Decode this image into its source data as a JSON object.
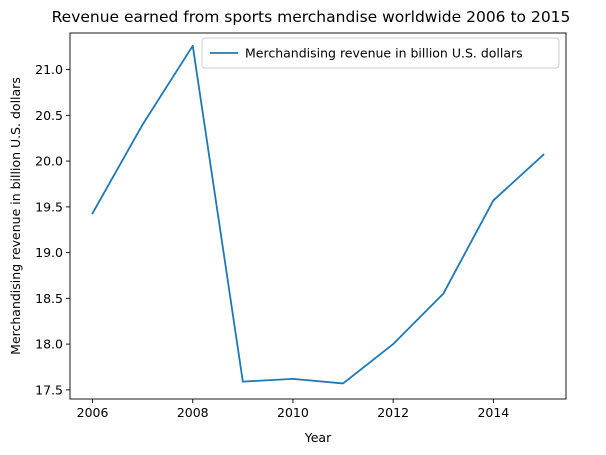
{
  "chart_data": {
    "type": "line",
    "title": "Revenue earned from sports merchandise worldwide 2006 to 2015",
    "xlabel": "Year",
    "ylabel": "Merchandising revenue in billion U.S. dollars",
    "x": [
      2006,
      2007,
      2008,
      2009,
      2010,
      2011,
      2012,
      2013,
      2014,
      2015
    ],
    "series": [
      {
        "name": "Merchandising revenue in billion U.S. dollars",
        "color": "#1f77b4",
        "values": [
          19.43,
          20.4,
          21.26,
          17.59,
          17.62,
          17.57,
          18.0,
          18.55,
          19.57,
          20.07
        ]
      }
    ],
    "xlim": [
      2005.55,
      2015.45
    ],
    "ylim": [
      17.4,
      21.4
    ],
    "x_ticks": [
      2006,
      2008,
      2010,
      2012,
      2014
    ],
    "y_ticks": [
      17.5,
      18.0,
      18.5,
      19.0,
      19.5,
      20.0,
      20.5,
      21.0
    ],
    "x_tick_labels": [
      "2006",
      "2008",
      "2010",
      "2012",
      "2014"
    ],
    "y_tick_labels": [
      "17.5",
      "18.0",
      "18.5",
      "19.0",
      "19.5",
      "20.0",
      "20.5",
      "21.0"
    ],
    "grid": false,
    "legend_position": "top-right"
  }
}
